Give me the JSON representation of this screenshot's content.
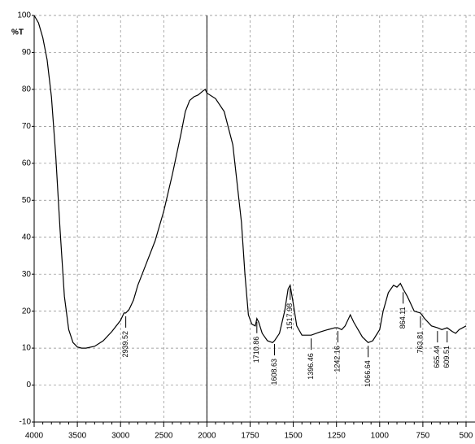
{
  "chart_data": {
    "type": "line",
    "ylabel": "%T",
    "x": [
      4000,
      3950,
      3900,
      3850,
      3800,
      3750,
      3700,
      3650,
      3600,
      3550,
      3500,
      3450,
      3400,
      3300,
      3200,
      3100,
      3000,
      2960,
      2939.52,
      2900,
      2850,
      2800,
      2750,
      2700,
      2600,
      2500,
      2400,
      2300,
      2250,
      2200,
      2150,
      2100,
      2050,
      2020,
      2000,
      1950,
      1900,
      1850,
      1800,
      1780,
      1760,
      1740,
      1720,
      1710.86,
      1700,
      1680,
      1650,
      1620,
      1608.63,
      1580,
      1550,
      1530,
      1517.98,
      1500,
      1480,
      1450,
      1396.46,
      1350,
      1300,
      1260,
      1242.16,
      1220,
      1200,
      1170,
      1150,
      1100,
      1066.64,
      1040,
      1000,
      980,
      950,
      920,
      900,
      880,
      864.11,
      840,
      800,
      763.81,
      740,
      700,
      665.44,
      640,
      609.51,
      580,
      560,
      540,
      500
    ],
    "series": [
      {
        "color": "#000000",
        "values": [
          100,
          98,
          94,
          88,
          78,
          62,
          42,
          24,
          15,
          11.5,
          10.3,
          10,
          10,
          10.5,
          12,
          14.5,
          17.5,
          19.5,
          19.5,
          20.5,
          23,
          27,
          30,
          33,
          39,
          47,
          57,
          68,
          74,
          77,
          78,
          78.5,
          79.5,
          80,
          79,
          77.5,
          74,
          65,
          44,
          30,
          19,
          16.5,
          16,
          18,
          17,
          14,
          12,
          11.5,
          12,
          14,
          20,
          26,
          27,
          22,
          16,
          13.5,
          13.5,
          14.3,
          15,
          15.5,
          15.5,
          15,
          16,
          19,
          17,
          13,
          11.5,
          12,
          15,
          20,
          25,
          27,
          26.5,
          27.5,
          26,
          24,
          20,
          19.5,
          18,
          16,
          15.5,
          15,
          15.5,
          14.5,
          14,
          15,
          16
        ]
      }
    ],
    "peaks": {
      "x": [
        2939.52,
        1710.86,
        1608.63,
        1517.98,
        1396.46,
        1242.16,
        1066.64,
        864.11,
        763.81,
        665.44,
        609.51
      ],
      "y": [
        19.5,
        18,
        12,
        27,
        13.5,
        15.5,
        11.5,
        26,
        19.5,
        15.5,
        15.5
      ]
    },
    "cursor_x": 2000,
    "xlim": [
      4000,
      500
    ],
    "xticks": [
      4000,
      3500,
      3000,
      2500,
      2000,
      1750,
      1500,
      1250,
      1000,
      750,
      500
    ],
    "ylim": [
      -10,
      100
    ],
    "yticks": [
      -10,
      0,
      10,
      20,
      30,
      40,
      50,
      60,
      70,
      80,
      90,
      100
    ],
    "grid": true
  }
}
